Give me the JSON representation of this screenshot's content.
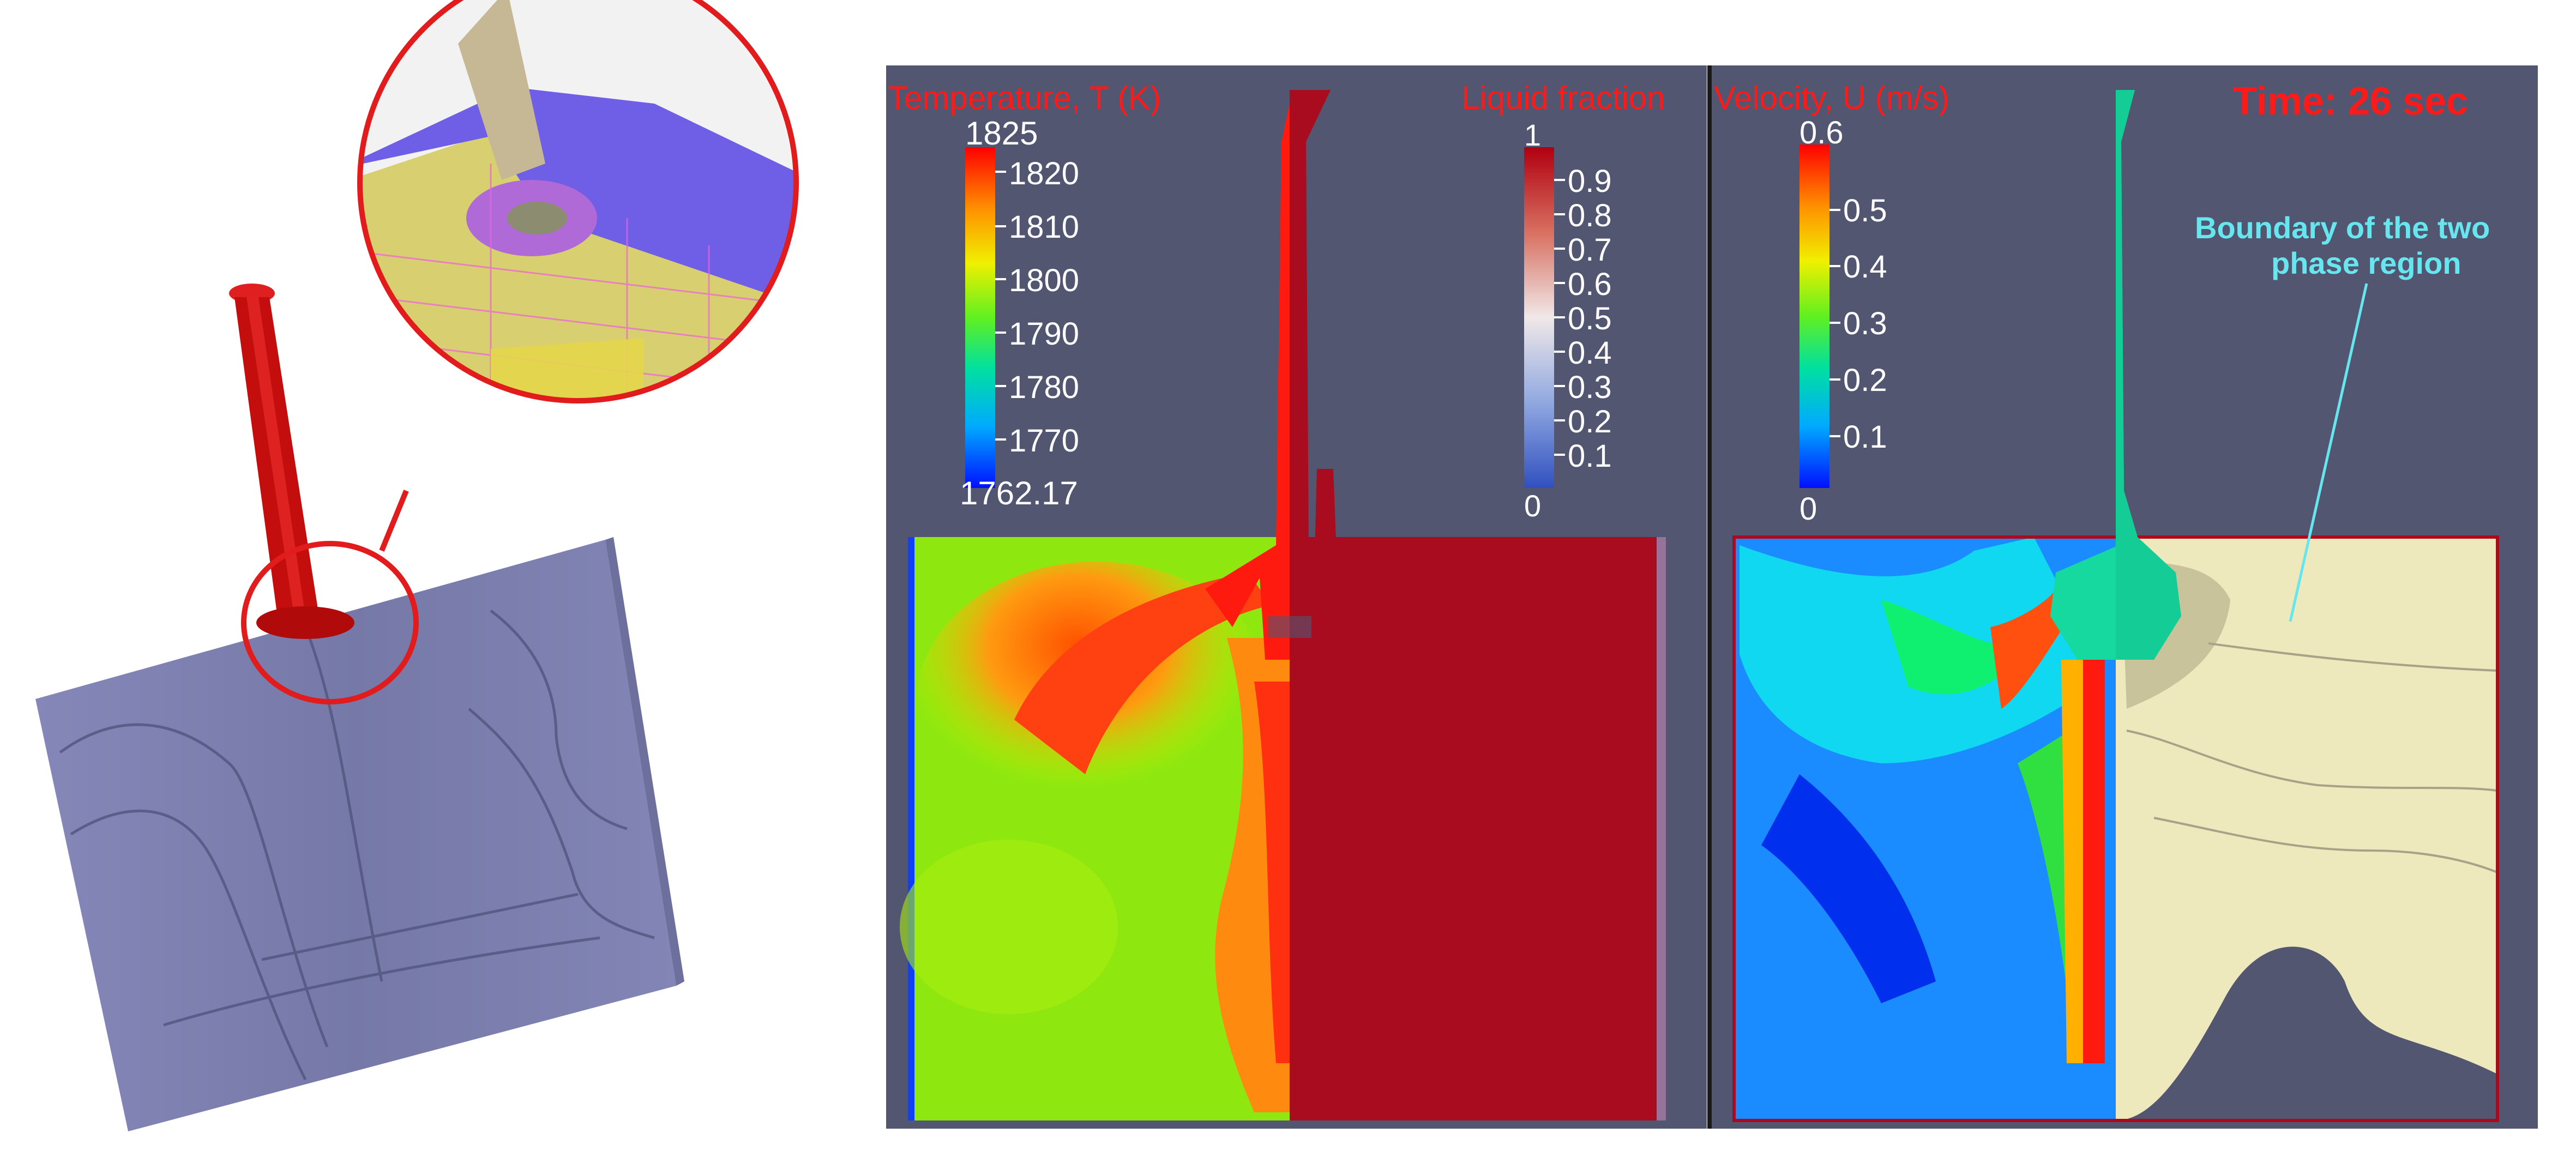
{
  "left_panel": {
    "mesh_colors": {
      "plate": "#7d80b0",
      "nozzle": "#d10f0f",
      "mesh_yellow": "#e8d44a",
      "mesh_magenta": "#c050e0",
      "callout": "#e21c1c"
    }
  },
  "temperature_panel": {
    "title": "Temperature, T (K)",
    "colorbar": {
      "max_label": "1825",
      "min_label": "1762.17",
      "ticks": [
        "1820",
        "1810",
        "1800",
        "1790",
        "1780",
        "1770"
      ]
    }
  },
  "liquid_panel": {
    "title": "Liquid fraction",
    "colorbar": {
      "max_label": "1",
      "min_label": "0",
      "ticks": [
        "0.9",
        "0.8",
        "0.7",
        "0.6",
        "0.5",
        "0.4",
        "0.3",
        "0.2",
        "0.1"
      ]
    }
  },
  "velocity_panel": {
    "title": "Velocity, U (m/s)",
    "time_label": "Time: 26 sec",
    "colorbar": {
      "max_label": "0.6",
      "min_label": "0",
      "ticks": [
        "0.5",
        "0.4",
        "0.3",
        "0.2",
        "0.1"
      ]
    },
    "annotation": {
      "line1": "Boundary of the two",
      "line2": "phase region"
    }
  },
  "colors": {
    "panel_bg": "#525671",
    "solid_red": "#a80c1e",
    "solid_cream": "#eee8bd",
    "fluid_green": "#16d9a0"
  }
}
